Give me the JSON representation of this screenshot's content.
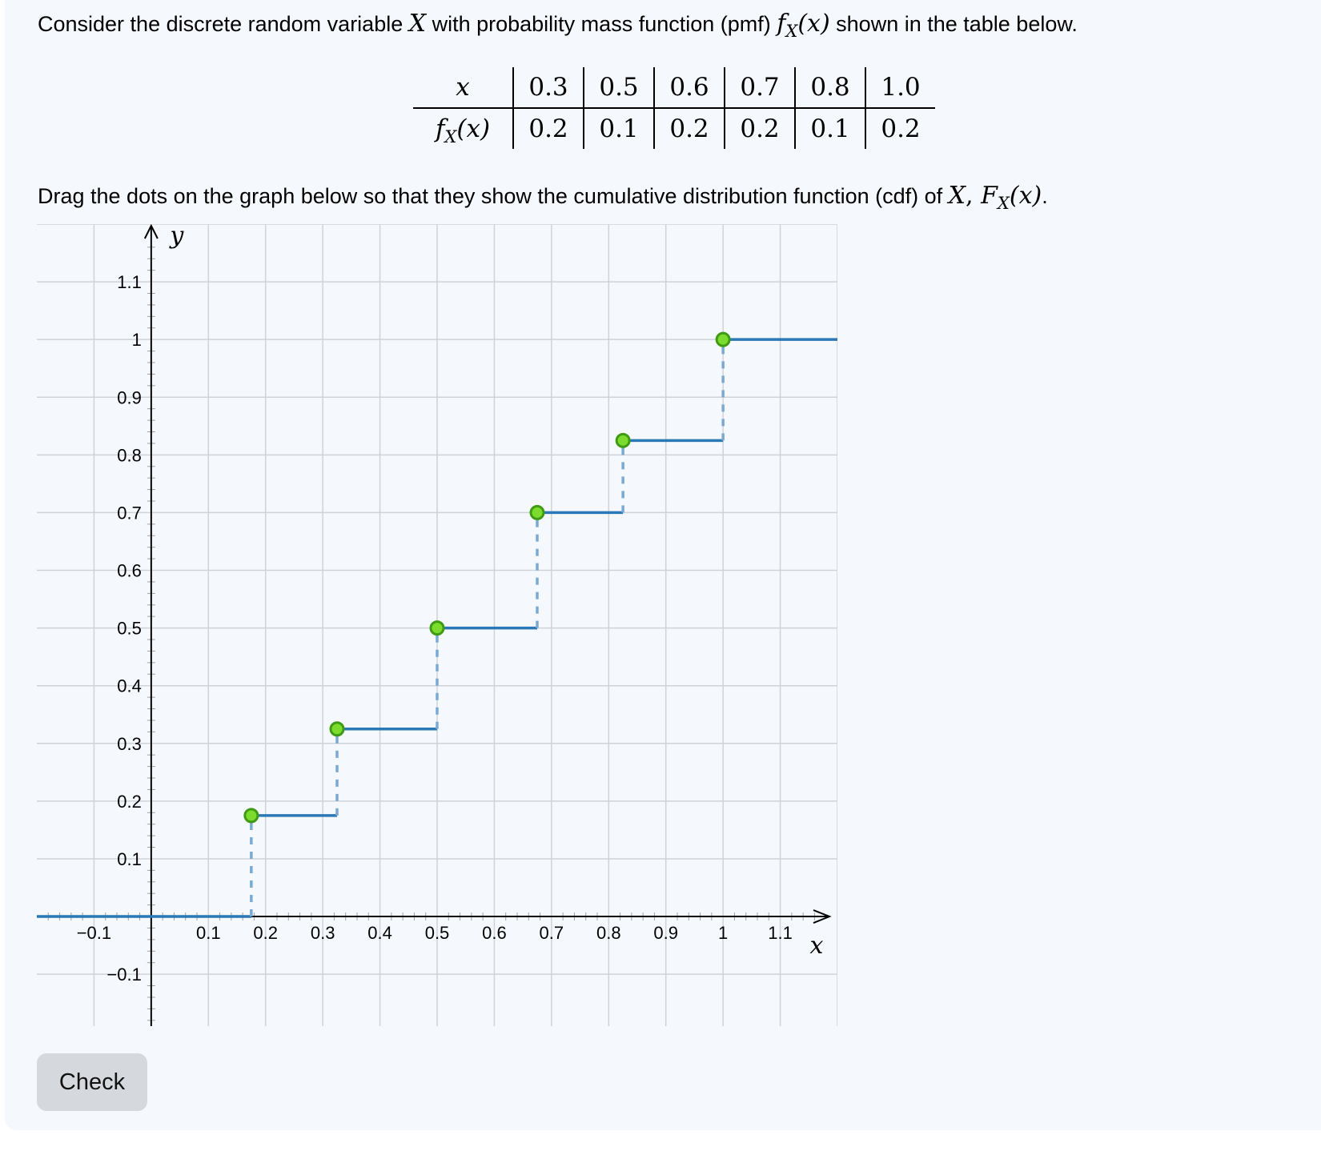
{
  "question": {
    "intro_before": "Consider the discrete random variable ",
    "var_x": "X",
    "intro_mid": " with probability mass function (pmf) ",
    "pmf_f": "f",
    "pmf_sub": "X",
    "pmf_arg": "(x)",
    "intro_after": " shown in the table below.",
    "drag_before": "Drag the dots on the graph below so that they show the cumulative distribution function (cdf) of ",
    "drag_var": "X",
    "drag_comma": ", ",
    "cdf_F": "F",
    "cdf_sub": "X",
    "cdf_arg": "(x)",
    "drag_end": "."
  },
  "pmf_table": {
    "row1_label": "x",
    "row2_label_f": "f",
    "row2_label_sub": "X",
    "row2_label_arg": "(x)",
    "x_values": [
      "0.3",
      "0.5",
      "0.6",
      "0.7",
      "0.8",
      "1.0"
    ],
    "p_values": [
      "0.2",
      "0.1",
      "0.2",
      "0.2",
      "0.1",
      "0.2"
    ]
  },
  "chart_data": {
    "type": "line",
    "xlabel": "x",
    "ylabel": "y",
    "xlim": [
      -0.2,
      1.2
    ],
    "ylim": [
      -0.19,
      1.2
    ],
    "x_ticks": [
      "−0.1",
      "0.1",
      "0.2",
      "0.3",
      "0.4",
      "0.5",
      "0.6",
      "0.7",
      "0.8",
      "0.9",
      "1",
      "1.1"
    ],
    "x_tick_values": [
      -0.1,
      0.1,
      0.2,
      0.3,
      0.4,
      0.5,
      0.6,
      0.7,
      0.8,
      0.9,
      1,
      1.1
    ],
    "y_ticks": [
      "1.1",
      "1",
      "0.9",
      "0.8",
      "0.7",
      "0.6",
      "0.5",
      "0.4",
      "0.3",
      "0.2",
      "0.1",
      "−0.1"
    ],
    "y_tick_values": [
      1.1,
      1,
      0.9,
      0.8,
      0.7,
      0.6,
      0.5,
      0.4,
      0.3,
      0.2,
      0.1,
      -0.1
    ],
    "grid": true,
    "points": [
      {
        "x": 0.175,
        "y": 0.175
      },
      {
        "x": 0.325,
        "y": 0.325
      },
      {
        "x": 0.5,
        "y": 0.5
      },
      {
        "x": 0.675,
        "y": 0.7
      },
      {
        "x": 0.825,
        "y": 0.825
      },
      {
        "x": 1.0,
        "y": 1.0
      }
    ],
    "step_color": "#2a78b5",
    "dash_color": "#7aa9d3",
    "dot_fill": "#7bdc2e",
    "dot_stroke": "#3f9a14"
  },
  "check_button": {
    "label": "Check"
  }
}
